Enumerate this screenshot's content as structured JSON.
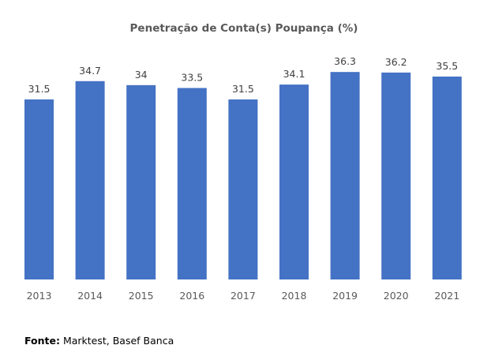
{
  "chart_data": {
    "type": "bar",
    "title": "Penetração de Conta(s) Poupança (%)",
    "categories": [
      "2013",
      "2014",
      "2015",
      "2016",
      "2017",
      "2018",
      "2019",
      "2020",
      "2021"
    ],
    "values": [
      31.5,
      34.7,
      34,
      33.5,
      31.5,
      34.1,
      36.3,
      36.2,
      35.5
    ],
    "value_labels": [
      "31.5",
      "34.7",
      "34",
      "33.5",
      "31.5",
      "34.1",
      "36.3",
      "36.2",
      "35.5"
    ],
    "xlabel": "",
    "ylabel": "",
    "ylim": [
      0,
      40
    ],
    "grid": false,
    "legend": "none",
    "bar_color": "#4472C4"
  },
  "source": {
    "label": "Fonte:",
    "text": " Marktest, Basef Banca"
  }
}
